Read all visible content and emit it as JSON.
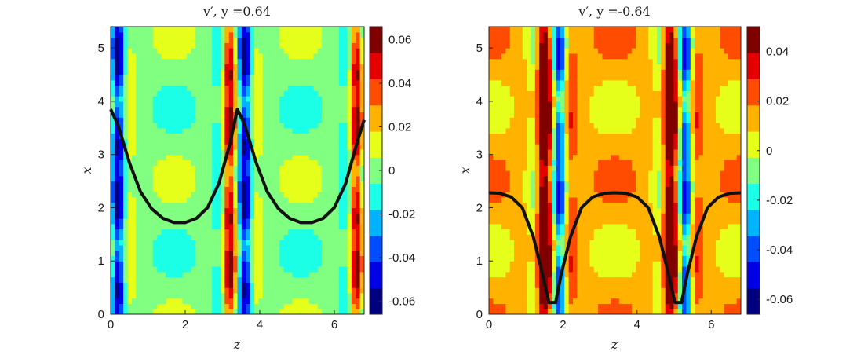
{
  "chart_data": [
    {
      "type": "heatmap",
      "title": "v′,  y =0.64",
      "xlabel": "z",
      "ylabel": "x",
      "xlim": [
        0,
        6.8
      ],
      "ylim": [
        0,
        5.4
      ],
      "xticks": [
        "0",
        "2",
        "4",
        "6"
      ],
      "yticks": [
        "0",
        "1",
        "2",
        "3",
        "4",
        "5"
      ],
      "colorbar": {
        "min": -0.066,
        "max": 0.066,
        "ticks": [
          "0.06",
          "0.04",
          "0.02",
          "0",
          "-0.02",
          "-0.04",
          "-0.06"
        ]
      },
      "colormap": "jet",
      "field": {
        "base": 0.0,
        "stripe_period": 3.4,
        "z_offset": 0.0,
        "notes": "filled contours of v' perturbation; strong streak pairs near z=0.15, 3.4, 6.6"
      },
      "line": {
        "name": "",
        "color": "#111111",
        "points": [
          [
            0.0,
            3.85
          ],
          [
            0.2,
            3.55
          ],
          [
            0.5,
            2.85
          ],
          [
            0.8,
            2.3
          ],
          [
            1.1,
            1.98
          ],
          [
            1.4,
            1.8
          ],
          [
            1.7,
            1.72
          ],
          [
            2.0,
            1.72
          ],
          [
            2.3,
            1.8
          ],
          [
            2.6,
            2.0
          ],
          [
            2.9,
            2.45
          ],
          [
            3.2,
            3.2
          ],
          [
            3.4,
            3.85
          ],
          [
            3.6,
            3.55
          ],
          [
            3.9,
            2.85
          ],
          [
            4.2,
            2.3
          ],
          [
            4.5,
            1.98
          ],
          [
            4.8,
            1.8
          ],
          [
            5.1,
            1.72
          ],
          [
            5.4,
            1.72
          ],
          [
            5.7,
            1.8
          ],
          [
            6.0,
            2.0
          ],
          [
            6.3,
            2.45
          ],
          [
            6.6,
            3.2
          ],
          [
            6.8,
            3.65
          ]
        ]
      }
    },
    {
      "type": "heatmap",
      "title": "v′,  y =-0.64",
      "xlabel": "z",
      "ylabel": "x",
      "xlim": [
        0,
        6.8
      ],
      "ylim": [
        0,
        5.4
      ],
      "xticks": [
        "0",
        "2",
        "4",
        "6"
      ],
      "yticks": [
        "0",
        "1",
        "2",
        "3",
        "4",
        "5"
      ],
      "colorbar": {
        "min": -0.066,
        "max": 0.05,
        "ticks": [
          "0.04",
          "0.02",
          "0",
          "-0.02",
          "-0.04",
          "-0.06"
        ]
      },
      "colormap": "jet",
      "field": {
        "base": 0.012,
        "stripe_period": 3.4,
        "z_offset": 1.7,
        "notes": "filled contours of v' perturbation; streak pairs near z=1.7 and 5.1"
      },
      "line": {
        "name": "",
        "color": "#111111",
        "points": [
          [
            0.0,
            2.28
          ],
          [
            0.3,
            2.27
          ],
          [
            0.6,
            2.2
          ],
          [
            0.9,
            2.0
          ],
          [
            1.2,
            1.45
          ],
          [
            1.45,
            0.75
          ],
          [
            1.62,
            0.22
          ],
          [
            1.8,
            0.22
          ],
          [
            1.95,
            0.75
          ],
          [
            2.2,
            1.45
          ],
          [
            2.5,
            2.0
          ],
          [
            2.8,
            2.2
          ],
          [
            3.1,
            2.27
          ],
          [
            3.4,
            2.28
          ],
          [
            3.7,
            2.27
          ],
          [
            4.0,
            2.2
          ],
          [
            4.3,
            2.0
          ],
          [
            4.6,
            1.45
          ],
          [
            4.85,
            0.75
          ],
          [
            5.02,
            0.22
          ],
          [
            5.2,
            0.22
          ],
          [
            5.35,
            0.75
          ],
          [
            5.6,
            1.45
          ],
          [
            5.9,
            2.0
          ],
          [
            6.2,
            2.2
          ],
          [
            6.5,
            2.27
          ],
          [
            6.8,
            2.28
          ]
        ]
      }
    }
  ]
}
